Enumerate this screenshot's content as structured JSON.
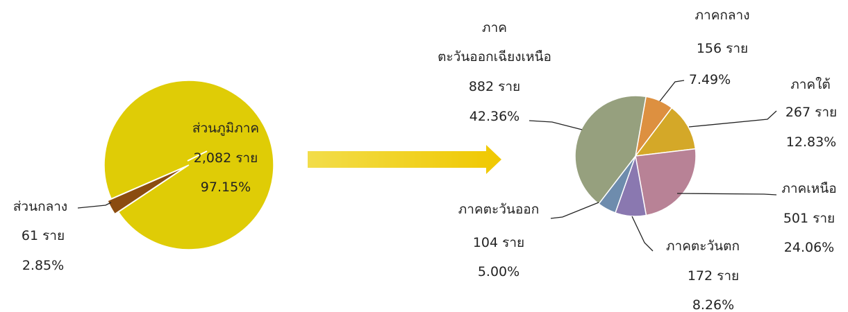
{
  "chart_data": [
    {
      "type": "pie",
      "categories": [
        "ส่วนภูมิภาค",
        "ส่วนกลาง"
      ],
      "values": [
        2082,
        61
      ],
      "value_labels": [
        "2,082 ราย",
        "61 ราย"
      ],
      "percents": [
        97.15,
        2.85
      ],
      "percent_labels": [
        "97.15%",
        "2.85%"
      ],
      "colors": [
        "#dfcc06",
        "#8b4c10"
      ]
    },
    {
      "type": "pie",
      "categories": [
        "ภาคกลาง",
        "ภาคใต้",
        "ภาคเหนือ",
        "ภาคตะวันตก",
        "ภาคตะวันออก",
        "ภาค\nตะวันออกเฉียงเหนือ"
      ],
      "values": [
        156,
        267,
        501,
        172,
        104,
        882
      ],
      "value_labels": [
        "156 ราย",
        "267 ราย",
        "501 ราย",
        "172 ราย",
        "104 ราย",
        "882 ราย"
      ],
      "percents": [
        7.49,
        12.83,
        24.06,
        8.26,
        5.0,
        42.36
      ],
      "percent_labels": [
        "7.49%",
        "12.83%",
        "24.06%",
        "8.26%",
        "5.00%",
        "42.36%"
      ],
      "colors": [
        "#dd9040",
        "#d4a828",
        "#b88296",
        "#8a78b0",
        "#6e8cad",
        "#96a07e"
      ]
    }
  ]
}
